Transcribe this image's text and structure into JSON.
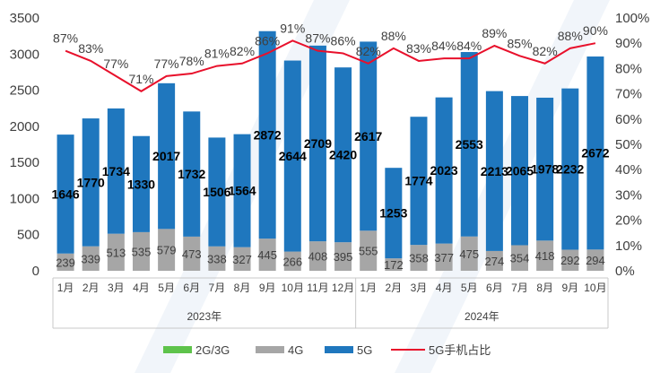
{
  "chart_data": {
    "type": "bar",
    "stacked": true,
    "title": "",
    "categories": [
      "1月",
      "2月",
      "3月",
      "4月",
      "5月",
      "6月",
      "7月",
      "8月",
      "9月",
      "10月",
      "11月",
      "12月",
      "1月",
      "2月",
      "3月",
      "4月",
      "5月",
      "6月",
      "7月",
      "8月",
      "9月",
      "10月"
    ],
    "groups": [
      {
        "label": "2023年",
        "count": 12
      },
      {
        "label": "2024年",
        "count": 10
      }
    ],
    "series": [
      {
        "name": "2G/3G",
        "color": "#5ec34b",
        "values": [
          0,
          0,
          0,
          0,
          0,
          0,
          0,
          0,
          0,
          0,
          0,
          0,
          0,
          0,
          0,
          0,
          0,
          0,
          0,
          0,
          0,
          0
        ]
      },
      {
        "name": "4G",
        "color": "#a6a6a6",
        "values": [
          239,
          339,
          513,
          535,
          579,
          473,
          338,
          327,
          445,
          266,
          408,
          395,
          555,
          172,
          358,
          377,
          475,
          274,
          354,
          418,
          292,
          294
        ]
      },
      {
        "name": "5G",
        "color": "#1f77be",
        "values": [
          1646,
          1770,
          1734,
          1330,
          2017,
          1732,
          1506,
          1564,
          2872,
          2644,
          2709,
          2420,
          2617,
          1253,
          1774,
          2023,
          2553,
          2213,
          2065,
          1978,
          2232,
          2672
        ]
      }
    ],
    "line": {
      "name": "5G手机占比",
      "color": "#e8102b",
      "values": [
        87,
        83,
        77,
        71,
        77,
        78,
        81,
        82,
        86,
        91,
        87,
        86,
        82,
        88,
        83,
        84,
        84,
        89,
        85,
        82,
        88,
        90
      ],
      "labels": [
        "87%",
        "83%",
        "77%",
        "71%",
        "77%",
        "78%",
        "81%",
        "82%",
        "86%",
        "91%",
        "87%",
        "86%",
        "82%",
        "88%",
        "83%",
        "84%",
        "84%",
        "89%",
        "85%",
        "82%",
        "88%",
        "90%"
      ]
    },
    "y_left": {
      "min": 0,
      "max": 3500,
      "ticks": [
        0,
        500,
        1000,
        1500,
        2000,
        2500,
        3000,
        3500
      ]
    },
    "y_right": {
      "min": 0,
      "max": 100,
      "ticks": [
        "0%",
        "10%",
        "20%",
        "30%",
        "40%",
        "50%",
        "60%",
        "70%",
        "80%",
        "90%",
        "100%"
      ]
    },
    "legend": {
      "position": "bottom",
      "items": [
        "2G/3G",
        "4G",
        "5G",
        "5G手机占比"
      ]
    },
    "grid": false
  }
}
